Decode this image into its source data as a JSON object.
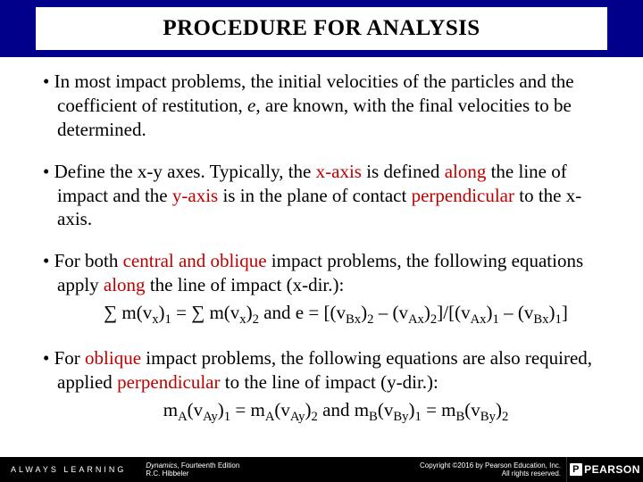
{
  "header": {
    "title": "PROCEDURE FOR ANALYSIS"
  },
  "bullets": {
    "b1_pre": "• In most impact problems, the initial velocities of the particles and the coefficient of restitution, ",
    "b1_e": "e",
    "b1_post": ", are known, with the final velocities to be determined.",
    "b2_t1": "• Define the x-y axes.  Typically, the ",
    "b2_r1": "x-axis",
    "b2_t2": " is defined ",
    "b2_r2": "along",
    "b2_t3": " the line of impact and the ",
    "b2_r3": "y-axis",
    "b2_t4": " is in the plane of contact ",
    "b2_r4": "perpendicular",
    "b2_t5": " to the x-axis.",
    "b3_t1": "• For both ",
    "b3_r1": "central and oblique",
    "b3_t2": " impact problems, the following equations apply ",
    "b3_r2": "along",
    "b3_t3": " the line of impact (x-dir.):",
    "b4_t1": "• For ",
    "b4_r1": "oblique",
    "b4_t2": " impact problems, the following equations are also required, applied ",
    "b4_r2": "perpendicular",
    "b4_t3": " to the line of impact (y-dir.):"
  },
  "eqs": {
    "eq1_a": "∑ m(v",
    "eq1_x": "x",
    "eq1_b": ")",
    "eq1_1": "1",
    "eq1_eq": " = ∑ m(v",
    "eq1_2": "2",
    "eq1_and": "   and   e = [(v",
    "eq1_Bx": "Bx",
    "eq1_minus": " – (v",
    "eq1_Ax": "Ax",
    "eq1_div": "]/[(v",
    "eq1_end": "]",
    "eq2_a": "m",
    "eq2_A": "A",
    "eq2_v": "(v",
    "eq2_Ay": "Ay",
    "eq2_p": ")",
    "eq2_1": "1",
    "eq2_eq": " = m",
    "eq2_2": "2",
    "eq2_and": "   and   m",
    "eq2_B": "B",
    "eq2_By": "By"
  },
  "footer": {
    "always": "ALWAYS LEARNING",
    "book_title": "Dynamics",
    "book_ed": ", Fourteenth Edition",
    "author": "R.C. Hibbeler",
    "copyright": "Copyright ©2016 by Pearson Education, Inc.",
    "rights": "All rights reserved.",
    "pearson": "PEARSON"
  }
}
